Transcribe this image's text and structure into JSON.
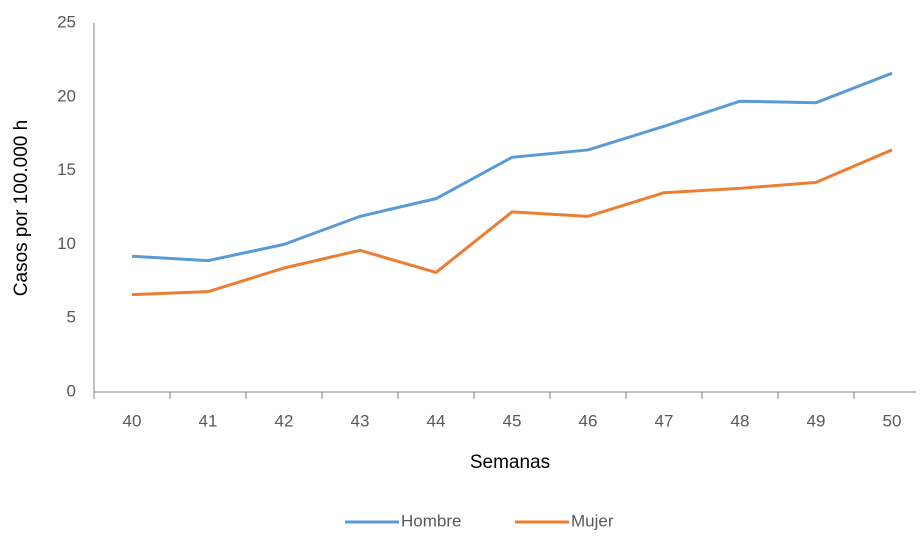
{
  "chart_data": {
    "type": "line",
    "x_label": "Semanas",
    "y_label": "Casos por 100.000 h",
    "categories": [
      "40",
      "41",
      "42",
      "43",
      "44",
      "45",
      "46",
      "47",
      "48",
      "49",
      "50"
    ],
    "series": [
      {
        "name": "Hombre",
        "color": "#5b9bd5",
        "values": [
          9.2,
          8.9,
          10.0,
          11.9,
          13.1,
          15.9,
          16.4,
          18.0,
          19.7,
          19.6,
          21.6
        ]
      },
      {
        "name": "Mujer",
        "color": "#ed7d31",
        "values": [
          6.6,
          6.8,
          8.4,
          9.6,
          8.1,
          12.2,
          11.9,
          13.5,
          13.8,
          14.2,
          16.4
        ]
      }
    ],
    "ylim": [
      0,
      25
    ],
    "yticks": [
      0,
      5,
      10,
      15,
      20,
      25
    ],
    "grid": false,
    "legend": "bottom"
  }
}
